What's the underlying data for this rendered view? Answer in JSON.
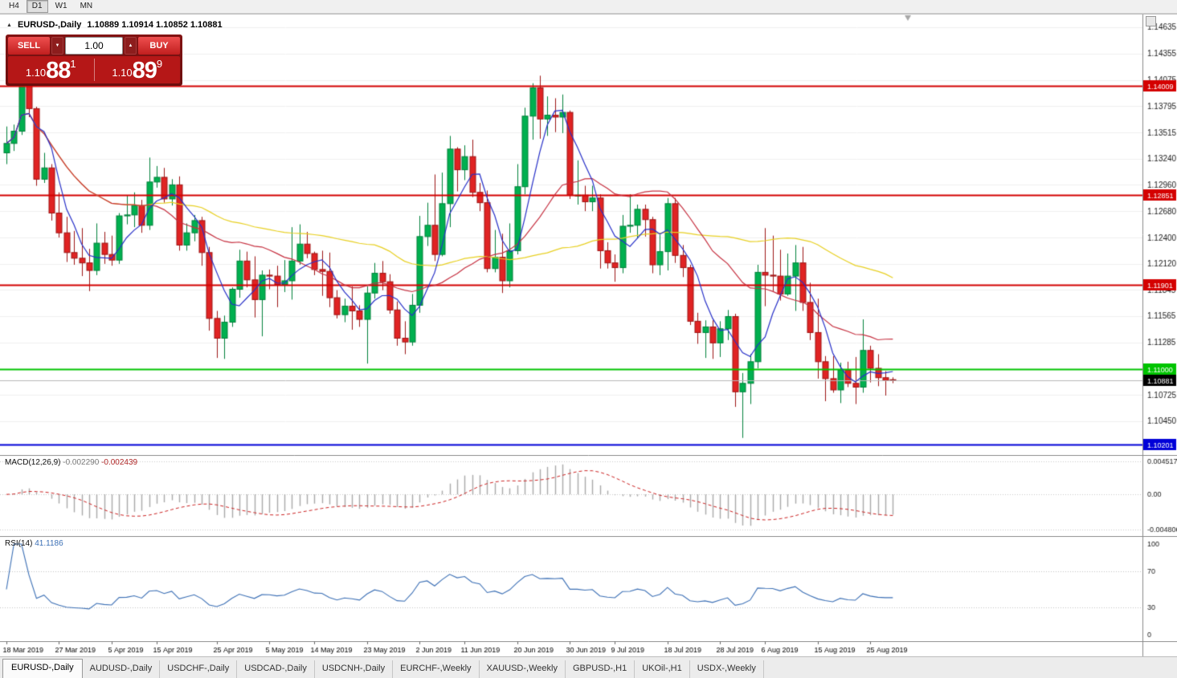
{
  "icons": {
    "collapse": "▲",
    "lot_down": "▼",
    "lot_up": "▲"
  },
  "toolbar": {
    "timeframes": [
      {
        "label": "H4",
        "active": false
      },
      {
        "label": "D1",
        "active": true
      },
      {
        "label": "W1",
        "active": false
      },
      {
        "label": "MN",
        "active": false
      }
    ]
  },
  "chart_header": {
    "symbol": "EURUSD-,Daily",
    "ohlc": "1.10889 1.10914 1.10852 1.10881"
  },
  "trade_panel": {
    "sell_label": "SELL",
    "buy_label": "BUY",
    "lot_size": "1.00",
    "sell_price": {
      "prefix": "1.10",
      "pips": "88",
      "pipette": "1"
    },
    "buy_price": {
      "prefix": "1.10",
      "pips": "89",
      "pipette": "9"
    }
  },
  "tabs": [
    {
      "label": "EURUSD-,Daily",
      "active": true
    },
    {
      "label": "AUDUSD-,Daily",
      "active": false
    },
    {
      "label": "USDCHF-,Daily",
      "active": false
    },
    {
      "label": "USDCAD-,Daily",
      "active": false
    },
    {
      "label": "USDCNH-,Daily",
      "active": false
    },
    {
      "label": "EURCHF-,Weekly",
      "active": false
    },
    {
      "label": "XAUUSD-,Weekly",
      "active": false
    },
    {
      "label": "GBPUSD-,H1",
      "active": false
    },
    {
      "label": "UKOil-,H1",
      "active": false
    },
    {
      "label": "USDX-,Weekly",
      "active": false
    }
  ],
  "chart_data": {
    "type": "candlestick",
    "title": "EURUSD-,Daily",
    "bar_spacing": 9.35,
    "first_x": 8,
    "price_range": {
      "top": 1.14771,
      "bottom": 1.10089
    },
    "colors": {
      "up": "#00b050",
      "up_border": "#00813a",
      "down": "#e02323",
      "down_border": "#9d1414",
      "grid": "#f0f0f0",
      "axis_line": "#8a8a8a",
      "axis_text": "#1a1a1a",
      "bid_line": "#b8b8b8",
      "shift_marker": "#a8a8a8"
    },
    "y_ticks": [
      "1.14635",
      "1.14355",
      "1.14075",
      "1.13795",
      "1.13515",
      "1.13240",
      "1.12960",
      "1.12680",
      "1.12400",
      "1.12120",
      "1.11845",
      "1.11565",
      "1.11285",
      "1.10725",
      "1.10450"
    ],
    "x_tick_labels": [
      {
        "i": 0,
        "t": "18 Mar 2019"
      },
      {
        "i": 7,
        "t": "27 Mar 2019"
      },
      {
        "i": 14,
        "t": "5 Apr 2019"
      },
      {
        "i": 20,
        "t": "15 Apr 2019"
      },
      {
        "i": 28,
        "t": "25 Apr 2019"
      },
      {
        "i": 35,
        "t": "5 May 2019"
      },
      {
        "i": 41,
        "t": "14 May 2019"
      },
      {
        "i": 48,
        "t": "23 May 2019"
      },
      {
        "i": 55,
        "t": "2 Jun 2019"
      },
      {
        "i": 61,
        "t": "11 Jun 2019"
      },
      {
        "i": 68,
        "t": "20 Jun 2019"
      },
      {
        "i": 75,
        "t": "30 Jun 2019"
      },
      {
        "i": 81,
        "t": "9 Jul 2019"
      },
      {
        "i": 88,
        "t": "18 Jul 2019"
      },
      {
        "i": 95,
        "t": "28 Jul 2019"
      },
      {
        "i": 101,
        "t": "6 Aug 2019"
      },
      {
        "i": 108,
        "t": "15 Aug 2019"
      },
      {
        "i": 115,
        "t": "25 Aug 2019"
      }
    ],
    "hlines": [
      {
        "value": 1.14009,
        "label": "1.14009",
        "color": "#d40000"
      },
      {
        "value": 1.12851,
        "label": "1.12851",
        "color": "#d40000"
      },
      {
        "value": 1.11901,
        "label": "1.11901",
        "color": "#d40000"
      },
      {
        "value": 1.11,
        "label": "1.11000",
        "color": "#00c400"
      },
      {
        "value": 1.10201,
        "label": "1.10201",
        "color": "#0000d8"
      }
    ],
    "bid_line": {
      "value": 1.10881,
      "label": "1.10881",
      "badge_bg": "#000000"
    },
    "moving_averages": [
      {
        "period": 50,
        "color": "#e8d022"
      },
      {
        "period": 20,
        "color": "#c62f3f"
      },
      {
        "period": 5,
        "color": "#2730c8"
      }
    ],
    "macd": {
      "name": "MACD(12,26,9)",
      "value_main": "-0.002290",
      "value_signal": "-0.002439",
      "fast": 12,
      "slow": 26,
      "signal": 9,
      "axis_labels": [
        "0.004517",
        "0.00",
        "-0.004806"
      ],
      "max": 0.004517,
      "min": -0.004806,
      "hist_color": "#a9a9a9",
      "signal_color": "#cc2222"
    },
    "rsi": {
      "name": "RSI(14)",
      "value": "41.1186",
      "period": 14,
      "axis_labels": [
        "100",
        "70",
        "30",
        "0"
      ],
      "levels": [
        70,
        30
      ],
      "color": "#3b6fb5",
      "max": 100,
      "min": 0
    },
    "ohlc": [
      [
        1.133,
        1.1358,
        1.1318,
        1.134
      ],
      [
        1.134,
        1.136,
        1.1332,
        1.1353
      ],
      [
        1.1353,
        1.1437,
        1.1349,
        1.1417
      ],
      [
        1.1417,
        1.142,
        1.1368,
        1.1377
      ],
      [
        1.1377,
        1.1379,
        1.1295,
        1.1302
      ],
      [
        1.1302,
        1.133,
        1.1298,
        1.1314
      ],
      [
        1.1314,
        1.1318,
        1.1258,
        1.1266
      ],
      [
        1.1266,
        1.1288,
        1.124,
        1.1245
      ],
      [
        1.1245,
        1.1262,
        1.1214,
        1.1224
      ],
      [
        1.1224,
        1.1247,
        1.1211,
        1.1218
      ],
      [
        1.1218,
        1.125,
        1.1199,
        1.1213
      ],
      [
        1.1213,
        1.1228,
        1.1183,
        1.1205
      ],
      [
        1.1205,
        1.1255,
        1.12,
        1.1234
      ],
      [
        1.1234,
        1.1246,
        1.1212,
        1.1222
      ],
      [
        1.1222,
        1.1242,
        1.121,
        1.1216
      ],
      [
        1.1216,
        1.1266,
        1.1212,
        1.1263
      ],
      [
        1.1263,
        1.1285,
        1.1254,
        1.1264
      ],
      [
        1.1264,
        1.1288,
        1.1251,
        1.1274
      ],
      [
        1.1274,
        1.128,
        1.1245,
        1.1253
      ],
      [
        1.1253,
        1.1325,
        1.1248,
        1.1299
      ],
      [
        1.1299,
        1.1316,
        1.1293,
        1.1304
      ],
      [
        1.1304,
        1.1314,
        1.1277,
        1.1281
      ],
      [
        1.1281,
        1.1302,
        1.1274,
        1.1296
      ],
      [
        1.1296,
        1.1305,
        1.1226,
        1.1232
      ],
      [
        1.1232,
        1.1255,
        1.1226,
        1.1245
      ],
      [
        1.1245,
        1.1264,
        1.1236,
        1.1258
      ],
      [
        1.1258,
        1.1262,
        1.121,
        1.1224
      ],
      [
        1.1224,
        1.123,
        1.1141,
        1.1154
      ],
      [
        1.1154,
        1.1162,
        1.1112,
        1.1133
      ],
      [
        1.1133,
        1.1157,
        1.1111,
        1.115
      ],
      [
        1.115,
        1.1187,
        1.1145,
        1.1185
      ],
      [
        1.1185,
        1.1227,
        1.1176,
        1.1215
      ],
      [
        1.1215,
        1.1225,
        1.1187,
        1.1195
      ],
      [
        1.1195,
        1.122,
        1.1155,
        1.1174
      ],
      [
        1.1174,
        1.1205,
        1.1135,
        1.12
      ],
      [
        1.12,
        1.1206,
        1.1185,
        1.1199
      ],
      [
        1.1199,
        1.121,
        1.1166,
        1.119
      ],
      [
        1.119,
        1.1216,
        1.1182,
        1.1194
      ],
      [
        1.1194,
        1.1251,
        1.1174,
        1.1215
      ],
      [
        1.1215,
        1.1254,
        1.1211,
        1.1233
      ],
      [
        1.1233,
        1.1246,
        1.1218,
        1.1223
      ],
      [
        1.1223,
        1.1225,
        1.12,
        1.1206
      ],
      [
        1.1206,
        1.1226,
        1.1178,
        1.1204
      ],
      [
        1.1204,
        1.1224,
        1.1166,
        1.1176
      ],
      [
        1.1176,
        1.1184,
        1.1154,
        1.1158
      ],
      [
        1.1158,
        1.1175,
        1.115,
        1.1167
      ],
      [
        1.1167,
        1.1188,
        1.1142,
        1.1162
      ],
      [
        1.1162,
        1.1168,
        1.1145,
        1.1153
      ],
      [
        1.1153,
        1.1188,
        1.1106,
        1.1181
      ],
      [
        1.1181,
        1.1213,
        1.1175,
        1.1202
      ],
      [
        1.1202,
        1.1215,
        1.1184,
        1.1193
      ],
      [
        1.1193,
        1.1201,
        1.1159,
        1.1163
      ],
      [
        1.1163,
        1.1172,
        1.1125,
        1.1133
      ],
      [
        1.1133,
        1.1151,
        1.1116,
        1.1129
      ],
      [
        1.1129,
        1.118,
        1.1125,
        1.1168
      ],
      [
        1.1168,
        1.1263,
        1.116,
        1.1241
      ],
      [
        1.1241,
        1.1277,
        1.1231,
        1.1253
      ],
      [
        1.1253,
        1.1307,
        1.1215,
        1.1222
      ],
      [
        1.1222,
        1.1309,
        1.122,
        1.1276
      ],
      [
        1.1276,
        1.1348,
        1.1251,
        1.1334
      ],
      [
        1.1334,
        1.1336,
        1.1289,
        1.1312
      ],
      [
        1.1312,
        1.1338,
        1.1301,
        1.1326
      ],
      [
        1.1326,
        1.1344,
        1.1283,
        1.1288
      ],
      [
        1.1288,
        1.1298,
        1.1268,
        1.1277
      ],
      [
        1.1277,
        1.129,
        1.1203,
        1.1207
      ],
      [
        1.1207,
        1.1248,
        1.1203,
        1.1219
      ],
      [
        1.1219,
        1.1244,
        1.1181,
        1.1194
      ],
      [
        1.1194,
        1.1255,
        1.1187,
        1.1226
      ],
      [
        1.1226,
        1.1318,
        1.1222,
        1.1294
      ],
      [
        1.1294,
        1.1378,
        1.1286,
        1.1369
      ],
      [
        1.1369,
        1.1404,
        1.1344,
        1.1399
      ],
      [
        1.1399,
        1.1412,
        1.1345,
        1.1366
      ],
      [
        1.1366,
        1.139,
        1.1348,
        1.137
      ],
      [
        1.137,
        1.1388,
        1.1352,
        1.1368
      ],
      [
        1.1368,
        1.1392,
        1.1351,
        1.1373
      ],
      [
        1.1373,
        1.1375,
        1.1281,
        1.1285
      ],
      [
        1.1285,
        1.1322,
        1.1275,
        1.1285
      ],
      [
        1.1285,
        1.1295,
        1.1268,
        1.1278
      ],
      [
        1.1278,
        1.1295,
        1.1268,
        1.1282
      ],
      [
        1.1282,
        1.1286,
        1.1207,
        1.1226
      ],
      [
        1.1226,
        1.1235,
        1.1207,
        1.1213
      ],
      [
        1.1213,
        1.1222,
        1.1193,
        1.1208
      ],
      [
        1.1208,
        1.1264,
        1.1202,
        1.1252
      ],
      [
        1.1252,
        1.1286,
        1.1245,
        1.1253
      ],
      [
        1.1253,
        1.1275,
        1.1239,
        1.127
      ],
      [
        1.127,
        1.1275,
        1.1241,
        1.1259
      ],
      [
        1.1259,
        1.1262,
        1.1202,
        1.1211
      ],
      [
        1.1211,
        1.1243,
        1.12,
        1.1225
      ],
      [
        1.1225,
        1.1282,
        1.1205,
        1.1276
      ],
      [
        1.1276,
        1.1282,
        1.1213,
        1.1221
      ],
      [
        1.1221,
        1.1232,
        1.1198,
        1.1208
      ],
      [
        1.1208,
        1.1211,
        1.1147,
        1.1151
      ],
      [
        1.1151,
        1.116,
        1.1127,
        1.1139
      ],
      [
        1.1139,
        1.1152,
        1.1112,
        1.1145
      ],
      [
        1.1145,
        1.1152,
        1.1111,
        1.1128
      ],
      [
        1.1128,
        1.1151,
        1.1113,
        1.1143
      ],
      [
        1.1143,
        1.1163,
        1.1131,
        1.1156
      ],
      [
        1.1156,
        1.1159,
        1.106,
        1.1076
      ],
      [
        1.1076,
        1.1096,
        1.1027,
        1.1085
      ],
      [
        1.1085,
        1.1116,
        1.1063,
        1.1108
      ],
      [
        1.1108,
        1.1211,
        1.1101,
        1.1203
      ],
      [
        1.1203,
        1.125,
        1.1167,
        1.12
      ],
      [
        1.12,
        1.1242,
        1.1183,
        1.1199
      ],
      [
        1.1199,
        1.1227,
        1.1173,
        1.118
      ],
      [
        1.118,
        1.1223,
        1.1178,
        1.1199
      ],
      [
        1.1199,
        1.1232,
        1.1162,
        1.1213
      ],
      [
        1.1213,
        1.123,
        1.1162,
        1.1171
      ],
      [
        1.1171,
        1.1192,
        1.1131,
        1.1139
      ],
      [
        1.1139,
        1.1175,
        1.109,
        1.1108
      ],
      [
        1.1108,
        1.1114,
        1.1066,
        1.109
      ],
      [
        1.109,
        1.1114,
        1.1075,
        1.1078
      ],
      [
        1.1078,
        1.1107,
        1.1064,
        1.1099
      ],
      [
        1.1099,
        1.1108,
        1.1081,
        1.1085
      ],
      [
        1.1085,
        1.1113,
        1.1063,
        1.1081
      ],
      [
        1.1081,
        1.1153,
        1.1075,
        1.112
      ],
      [
        1.112,
        1.1125,
        1.1086,
        1.1101
      ],
      [
        1.1101,
        1.1116,
        1.1082,
        1.1091
      ],
      [
        1.1091,
        1.1098,
        1.1072,
        1.1088
      ],
      [
        1.10889,
        1.10914,
        1.10852,
        1.10881
      ]
    ]
  }
}
